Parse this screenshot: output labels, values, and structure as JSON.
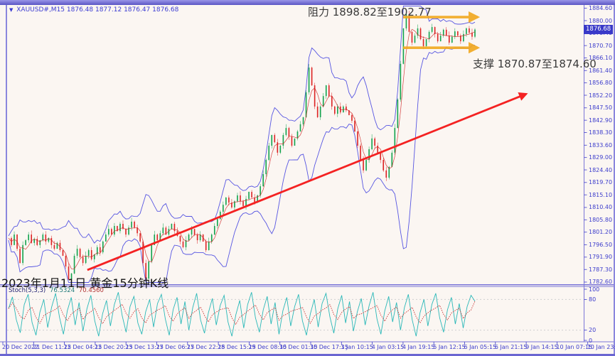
{
  "window": {
    "symbol_info": {
      "symbol": "XAUUSD#,M15",
      "ohlc": "1876.48 1877.12 1876.47 1876.68"
    }
  },
  "annotations": {
    "resistance": "阻力 1898.82至1902.77",
    "support": "支撑 1870.87至1874.60",
    "caption": "2023年1月11日 黄金15分钟K线"
  },
  "price_axis": {
    "current_label": "1876.68"
  },
  "indicator": {
    "name": "Stoch(5,3,3)",
    "value_main": "76.5324",
    "value_signal": "70.4560",
    "axis_labels": [
      100,
      80,
      20,
      0
    ],
    "dashed_levels": [
      80,
      20
    ]
  },
  "colors": {
    "up": "#11a24c",
    "down": "#dd2222",
    "band": "#4545e0",
    "ma": "#cc2222",
    "trend": "#f42222",
    "range_arrow": "#f2a81e",
    "frame": "#7b76d8",
    "axis_text": "#3c3ccc",
    "badge_bg": "#3939c8",
    "stoch_main": "#2ab8b8",
    "stoch_signal": "#cc3333",
    "level_dash": "#cfcfcf"
  },
  "chart_data": {
    "type": "candlestick",
    "symbol": "XAUUSD#",
    "timeframe": "M15",
    "title": "2023年1月11日 黄金15分钟K线",
    "ohlc_current": {
      "open": 1876.48,
      "high": 1877.12,
      "low": 1876.47,
      "close": 1876.68
    },
    "resistance_zone": [
      1898.82,
      1902.77
    ],
    "support_zone": [
      1870.87,
      1874.6
    ],
    "y_axis_prices": [
      1884.6,
      1880.0,
      1875.4,
      1870.7,
      1866.1,
      1861.4,
      1856.8,
      1852.2,
      1847.5,
      1842.9,
      1838.3,
      1833.6,
      1829.0,
      1824.4,
      1819.7,
      1815.1,
      1810.4,
      1805.8,
      1801.2,
      1796.5,
      1791.9,
      1787.3,
      1782.6
    ],
    "x_axis_times": [
      "20 Dec 2022",
      "21 Dec 11:15",
      "22 Dec 04:15",
      "22 Dec 20:15",
      "23 Dec 13:15",
      "27 Dec 06:15",
      "27 Dec 22:15",
      "28 Dec 15:15",
      "29 Dec 08:15",
      "30 Dec 01:15",
      "30 Dec 17:15",
      "3 Jan 10:15",
      "4 Jan 03:15",
      "4 Jan 19:15",
      "5 Jan 12:15",
      "6 Jan 05:15",
      "6 Jan 21:15",
      "9 Jan 14:15",
      "10 Jan 07:15",
      "10 Jan 23:15"
    ],
    "price_series": [
      1799.0,
      1796.4,
      1800.3,
      1795.0,
      1789.7,
      1796.4,
      1798.2,
      1800.3,
      1797.2,
      1798.7,
      1796.4,
      1798.2,
      1800.3,
      1797.7,
      1799.0,
      1796.4,
      1795.0,
      1797.2,
      1794.5,
      1792.4,
      1788.4,
      1783.6,
      1785.8,
      1792.4,
      1795.0,
      1791.9,
      1789.7,
      1792.4,
      1794.5,
      1791.1,
      1792.9,
      1795.6,
      1793.7,
      1797.7,
      1800.3,
      1802.4,
      1800.3,
      1803.5,
      1801.6,
      1804.3,
      1802.4,
      1800.3,
      1802.9,
      1805.1,
      1802.9,
      1800.8,
      1797.7,
      1789.7,
      1783.9,
      1790.3,
      1796.4,
      1800.3,
      1798.2,
      1800.8,
      1802.9,
      1800.3,
      1802.4,
      1804.3,
      1801.6,
      1799.8,
      1797.7,
      1795.6,
      1798.2,
      1800.3,
      1802.4,
      1800.3,
      1798.2,
      1800.3,
      1797.7,
      1794.5,
      1797.7,
      1800.3,
      1803.5,
      1806.1,
      1808.8,
      1811.4,
      1814.1,
      1812.2,
      1810.4,
      1812.7,
      1814.9,
      1812.7,
      1810.9,
      1813.6,
      1816.2,
      1814.1,
      1812.2,
      1814.9,
      1818.3,
      1822.8,
      1828.1,
      1833.4,
      1837.4,
      1834.7,
      1830.8,
      1833.4,
      1837.4,
      1840.0,
      1836.8,
      1833.4,
      1836.1,
      1838.7,
      1841.4,
      1844.0,
      1853.3,
      1862.5,
      1855.9,
      1848.0,
      1844.0,
      1848.0,
      1851.9,
      1855.9,
      1851.9,
      1848.0,
      1845.3,
      1848.0,
      1845.8,
      1848.0,
      1846.6,
      1844.8,
      1842.7,
      1838.7,
      1833.4,
      1828.1,
      1824.2,
      1828.1,
      1832.1,
      1836.1,
      1833.4,
      1830.8,
      1828.1,
      1824.2,
      1821.5,
      1825.5,
      1830.8,
      1840.0,
      1850.6,
      1863.9,
      1877.1,
      1882.4,
      1875.8,
      1871.8,
      1874.4,
      1877.1,
      1873.1,
      1870.5,
      1873.1,
      1875.8,
      1877.6,
      1875.0,
      1872.3,
      1874.4,
      1876.6,
      1874.4,
      1871.8,
      1874.0,
      1876.0,
      1874.4,
      1872.3,
      1875.0,
      1877.1,
      1875.5,
      1874.0,
      1876.68
    ],
    "stoch_series": [
      62,
      85,
      40,
      15,
      70,
      90,
      35,
      10,
      55,
      80,
      25,
      65,
      92,
      45,
      12,
      58,
      84,
      30,
      74,
      18,
      62,
      88,
      38,
      8,
      52,
      78,
      28,
      70,
      94,
      48,
      16,
      66,
      86,
      34,
      12,
      56,
      80,
      26,
      72,
      90,
      42,
      10,
      60,
      84,
      32,
      76,
      20,
      64,
      92,
      40,
      14,
      54,
      82,
      30,
      68,
      88,
      36,
      8,
      50,
      78,
      24,
      70,
      94,
      44,
      16,
      60,
      86,
      32,
      74,
      12,
      58,
      84,
      28,
      66,
      90,
      38,
      10,
      52,
      80,
      26,
      72,
      92,
      46,
      14,
      62,
      88,
      34,
      76,
      18,
      56,
      82,
      30,
      68,
      94,
      42,
      12,
      58,
      86,
      36,
      74,
      20,
      64,
      90,
      40,
      8,
      54,
      80,
      28,
      70,
      92,
      44,
      16,
      60,
      84,
      32,
      72,
      24,
      66,
      88,
      76.5
    ],
    "trend_line": {
      "from": {
        "x_frac": 0.169,
        "price": 1787.1
      },
      "to": {
        "x_frac": 1.11,
        "price": 1852.7
      }
    },
    "range_arrows": {
      "x_frac_start": 0.846,
      "x_frac_end": 1.006,
      "upper_price": 1881.3,
      "lower_price": 1869.9
    },
    "ylim": [
      1782.6,
      1884.6
    ],
    "stoch_ylim": [
      0,
      100
    ],
    "grid": "off",
    "legend": "none"
  }
}
